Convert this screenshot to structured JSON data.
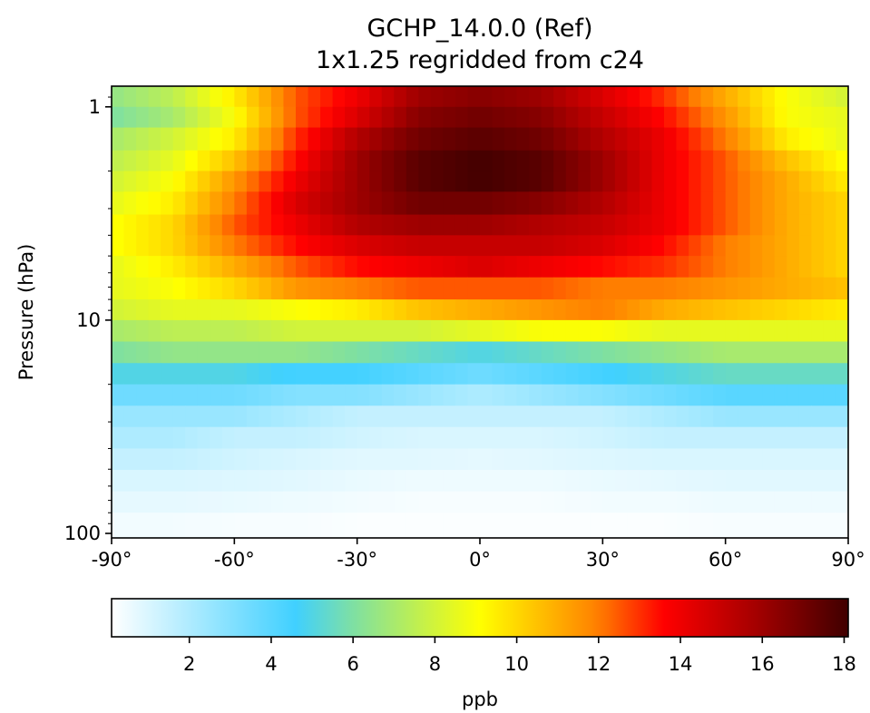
{
  "chart_data": {
    "type": "heatmap",
    "title": "GCHP_14.0.0 (Ref)",
    "subtitle": "1x1.25 regridded from c24",
    "xlabel": "",
    "ylabel": "Pressure (hPa)",
    "xlim": [
      -90,
      90
    ],
    "ylim": [
      105,
      0.8
    ],
    "yscale": "log",
    "x_ticks": [
      -90,
      -60,
      -30,
      0,
      30,
      60,
      90
    ],
    "x_tick_labels": [
      "-90°",
      "-60°",
      "-30°",
      "0°",
      "30°",
      "60°",
      "90°"
    ],
    "y_ticks": [
      1,
      10,
      100
    ],
    "y_tick_labels": [
      "1",
      "10",
      "100"
    ],
    "grid": false,
    "colormap": {
      "name": "WhGrYlRd",
      "stops": [
        {
          "v": 0.0,
          "color": "#ffffff"
        },
        {
          "v": 0.25,
          "color": "#40d0ff"
        },
        {
          "v": 0.33,
          "color": "#80e0a0"
        },
        {
          "v": 0.5,
          "color": "#ffff00"
        },
        {
          "v": 0.58,
          "color": "#ffc000"
        },
        {
          "v": 0.66,
          "color": "#ff8000"
        },
        {
          "v": 0.75,
          "color": "#ff0000"
        },
        {
          "v": 0.88,
          "color": "#a00000"
        },
        {
          "v": 1.0,
          "color": "#400000"
        }
      ]
    },
    "colorbar": {
      "label": "ppb",
      "range": [
        0.1,
        18.1
      ],
      "ticks": [
        2,
        4,
        6,
        8,
        10,
        12,
        14,
        16,
        18
      ],
      "tick_labels": [
        "2",
        "4",
        "6",
        "8",
        "10",
        "12",
        "14",
        "16",
        "18"
      ]
    },
    "levels_hPa": [
      0.8,
      1.0,
      1.25,
      1.6,
      2.0,
      2.5,
      3.2,
      4.0,
      5.0,
      6.3,
      8.0,
      10.0,
      12.6,
      15.9,
      20.0,
      25.2,
      31.7,
      40.0,
      50.4,
      63.5,
      80.0,
      105.0
    ],
    "lat_anchors": [
      -90,
      -75,
      -60,
      -45,
      -30,
      -15,
      0,
      15,
      30,
      45,
      60,
      75,
      90
    ],
    "values": [
      [
        6.5,
        7.5,
        9.5,
        12.5,
        14.0,
        16.0,
        16.5,
        16.0,
        14.5,
        13.0,
        11.0,
        9.0,
        8.0
      ],
      [
        6.0,
        7.0,
        9.0,
        12.5,
        14.5,
        16.5,
        17.0,
        16.5,
        15.0,
        13.5,
        11.5,
        9.0,
        8.5
      ],
      [
        7.0,
        8.0,
        9.5,
        13.0,
        15.5,
        17.0,
        17.5,
        17.0,
        15.5,
        14.0,
        12.0,
        9.5,
        8.5
      ],
      [
        7.5,
        8.5,
        10.5,
        13.5,
        16.0,
        17.5,
        18.0,
        17.5,
        16.0,
        14.0,
        12.5,
        10.5,
        9.0
      ],
      [
        8.0,
        9.0,
        11.5,
        14.0,
        16.0,
        17.5,
        18.0,
        17.5,
        16.0,
        14.0,
        12.5,
        11.0,
        9.5
      ],
      [
        8.5,
        9.5,
        12.0,
        14.5,
        16.0,
        17.0,
        17.0,
        16.5,
        15.5,
        14.0,
        12.5,
        11.0,
        10.0
      ],
      [
        9.0,
        10.0,
        12.5,
        14.0,
        15.5,
        16.0,
        16.0,
        15.5,
        15.0,
        14.0,
        12.5,
        11.0,
        10.0
      ],
      [
        9.0,
        10.0,
        12.0,
        13.5,
        14.5,
        15.0,
        15.0,
        15.0,
        14.5,
        13.5,
        12.0,
        11.0,
        10.0
      ],
      [
        8.5,
        9.5,
        11.0,
        12.5,
        13.5,
        14.0,
        14.5,
        14.0,
        13.5,
        13.0,
        12.0,
        11.0,
        10.0
      ],
      [
        8.5,
        9.0,
        10.0,
        11.5,
        12.0,
        12.5,
        12.5,
        12.5,
        12.0,
        12.0,
        11.5,
        11.0,
        10.5
      ],
      [
        8.0,
        8.5,
        8.5,
        9.0,
        9.5,
        10.5,
        11.0,
        11.5,
        12.0,
        11.0,
        10.5,
        10.0,
        9.5
      ],
      [
        7.0,
        7.5,
        7.5,
        8.0,
        8.0,
        8.0,
        8.5,
        9.0,
        9.0,
        8.5,
        8.5,
        8.5,
        8.5
      ],
      [
        6.0,
        6.5,
        6.5,
        6.5,
        6.0,
        5.5,
        5.0,
        5.5,
        6.0,
        6.5,
        7.0,
        7.0,
        7.0
      ],
      [
        5.0,
        5.0,
        5.0,
        4.5,
        4.5,
        4.0,
        3.5,
        4.0,
        4.5,
        5.0,
        5.5,
        5.5,
        5.5
      ],
      [
        3.5,
        3.5,
        3.5,
        3.0,
        3.0,
        2.5,
        2.0,
        2.5,
        3.0,
        3.5,
        4.0,
        4.0,
        4.0
      ],
      [
        2.5,
        2.5,
        2.5,
        2.0,
        1.5,
        1.5,
        1.5,
        1.5,
        1.5,
        2.0,
        2.5,
        2.5,
        2.5
      ],
      [
        2.0,
        2.0,
        1.5,
        1.5,
        1.2,
        1.0,
        1.0,
        1.0,
        1.2,
        1.5,
        1.5,
        1.5,
        1.5
      ],
      [
        1.5,
        1.5,
        1.2,
        1.0,
        0.8,
        0.8,
        0.7,
        0.8,
        0.9,
        1.0,
        1.0,
        1.0,
        1.0
      ],
      [
        1.0,
        1.0,
        0.9,
        0.8,
        0.6,
        0.5,
        0.5,
        0.5,
        0.6,
        0.7,
        0.8,
        0.8,
        0.8
      ],
      [
        0.7,
        0.7,
        0.6,
        0.5,
        0.4,
        0.3,
        0.3,
        0.3,
        0.4,
        0.4,
        0.5,
        0.5,
        0.5
      ],
      [
        0.4,
        0.4,
        0.3,
        0.3,
        0.2,
        0.2,
        0.2,
        0.2,
        0.2,
        0.2,
        0.3,
        0.3,
        0.3
      ]
    ]
  }
}
